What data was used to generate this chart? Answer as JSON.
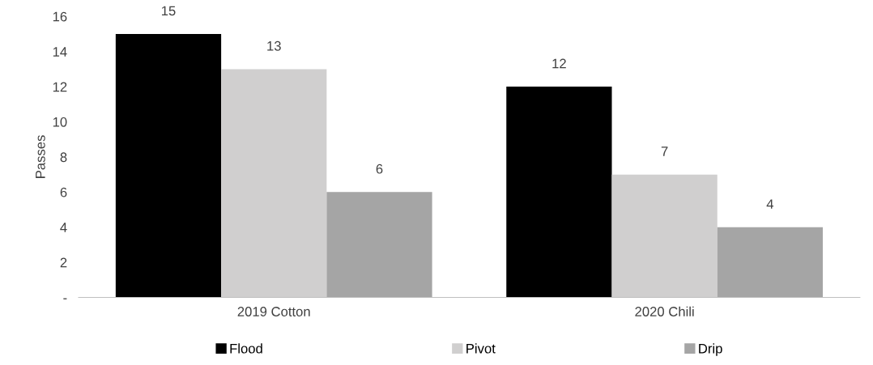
{
  "chart_data": {
    "type": "bar",
    "ylabel": "Passes",
    "categories": [
      "2019 Cotton",
      "2020 Chili"
    ],
    "series": [
      {
        "name": "Flood",
        "color": "#000000",
        "values": [
          15,
          12
        ]
      },
      {
        "name": "Pivot",
        "color": "#d0cfcf",
        "values": [
          13,
          7
        ]
      },
      {
        "name": "Drip",
        "color": "#a5a5a5",
        "values": [
          6,
          4
        ]
      }
    ],
    "ylim": [
      0,
      16
    ],
    "yticks": [
      {
        "value": 0,
        "label": "-"
      },
      2,
      4,
      6,
      8,
      10,
      12,
      14,
      16
    ],
    "data_labels": true,
    "grid": false,
    "legend": "bottom"
  }
}
